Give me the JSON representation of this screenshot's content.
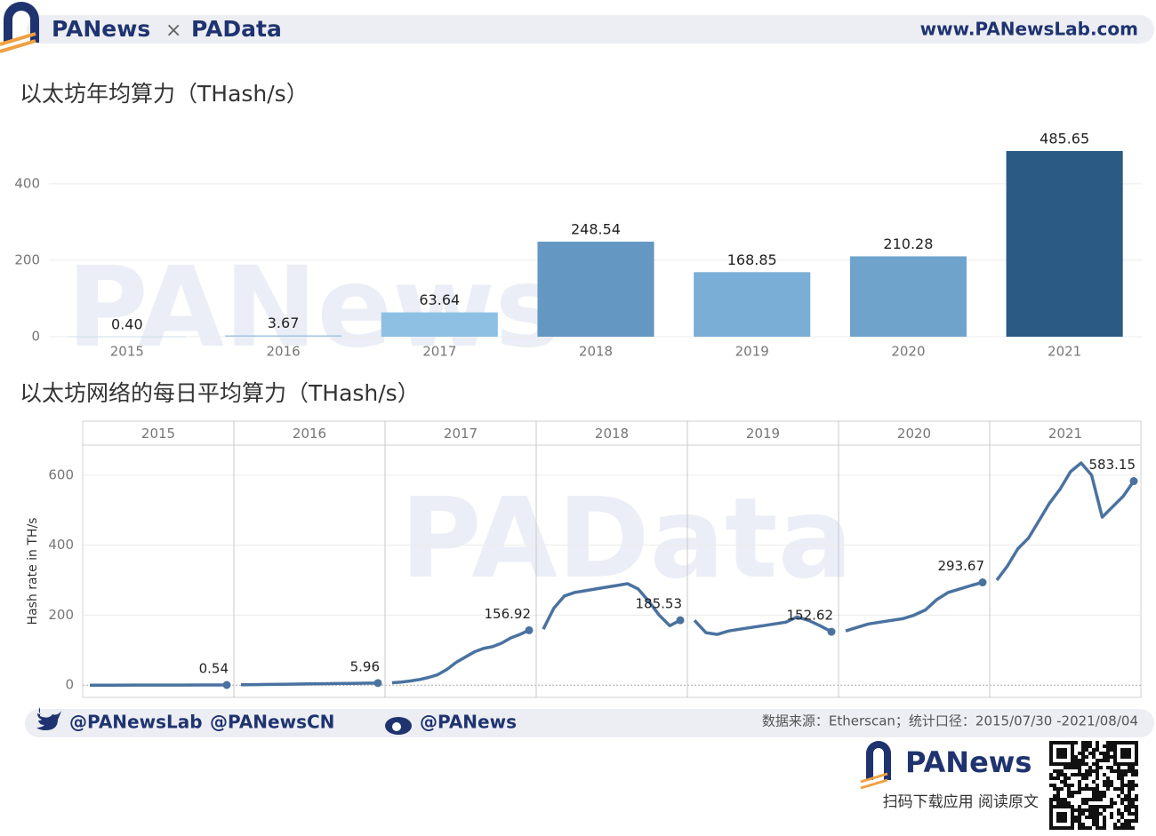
{
  "header": {
    "brand_left": "PANews",
    "separator": "×",
    "brand_right": "PAData",
    "url": "www.PANewsLab.com"
  },
  "watermarks": {
    "upper": "PANews",
    "lower": "PAData"
  },
  "chart_data": [
    {
      "type": "bar",
      "title": "以太坊年均算力（THash/s）",
      "categories": [
        "2015",
        "2016",
        "2017",
        "2018",
        "2019",
        "2020",
        "2021"
      ],
      "values": [
        0.4,
        3.67,
        63.64,
        248.54,
        168.85,
        210.28,
        485.65
      ],
      "value_labels": [
        "0.40",
        "3.67",
        "63.64",
        "248.54",
        "168.85",
        "210.28",
        "485.65"
      ],
      "colors": [
        "#a9cde8",
        "#a3c9e6",
        "#8ec0e4",
        "#6497c1",
        "#7aaed6",
        "#6fa3cc",
        "#2b5a84"
      ],
      "ylim": [
        0,
        560
      ],
      "yticks": [
        0,
        200,
        400
      ],
      "grid": true
    },
    {
      "type": "line",
      "title": "以太坊网络的每日平均算力（THash/s）",
      "y_label": "Hash rate in TH/s",
      "color": "#4a72a0",
      "panels": [
        {
          "name": "2015",
          "values": [
            0,
            0.1,
            0.2,
            0.3,
            0.4,
            0.5,
            0.54
          ]
        },
        {
          "name": "2016",
          "values": [
            1,
            1.5,
            2,
            2.5,
            3,
            3.5,
            4,
            4.5,
            5,
            5.5,
            5.96
          ]
        },
        {
          "name": "2017",
          "values": [
            7,
            9,
            12,
            16,
            22,
            30,
            45,
            65,
            80,
            95,
            105,
            110,
            120,
            135,
            145,
            156.92
          ]
        },
        {
          "name": "2018",
          "values": [
            160,
            220,
            255,
            265,
            270,
            275,
            280,
            285,
            290,
            275,
            240,
            200,
            170,
            185.53
          ]
        },
        {
          "name": "2019",
          "values": [
            185,
            150,
            145,
            155,
            160,
            165,
            170,
            175,
            180,
            195,
            185,
            170,
            152.62
          ]
        },
        {
          "name": "2020",
          "values": [
            155,
            165,
            175,
            180,
            185,
            190,
            200,
            215,
            245,
            265,
            275,
            285,
            293.67
          ]
        },
        {
          "name": "2021",
          "values": [
            300,
            340,
            390,
            420,
            470,
            520,
            560,
            610,
            635,
            600,
            480,
            510,
            540,
            583.15
          ]
        }
      ],
      "ylim": [
        -35,
        686
      ],
      "yticks": [
        0,
        200,
        400,
        600
      ],
      "grid": true
    }
  ],
  "footer": {
    "twitter_1": "@PANewsLab",
    "twitter_2": "@PANewsCN",
    "weibo": "@PANews",
    "source": "数据来源：Etherscan；统计口径：2015/07/30 -2021/08/04",
    "brand": "PANews",
    "cta": "扫码下载应用  阅读原文"
  }
}
